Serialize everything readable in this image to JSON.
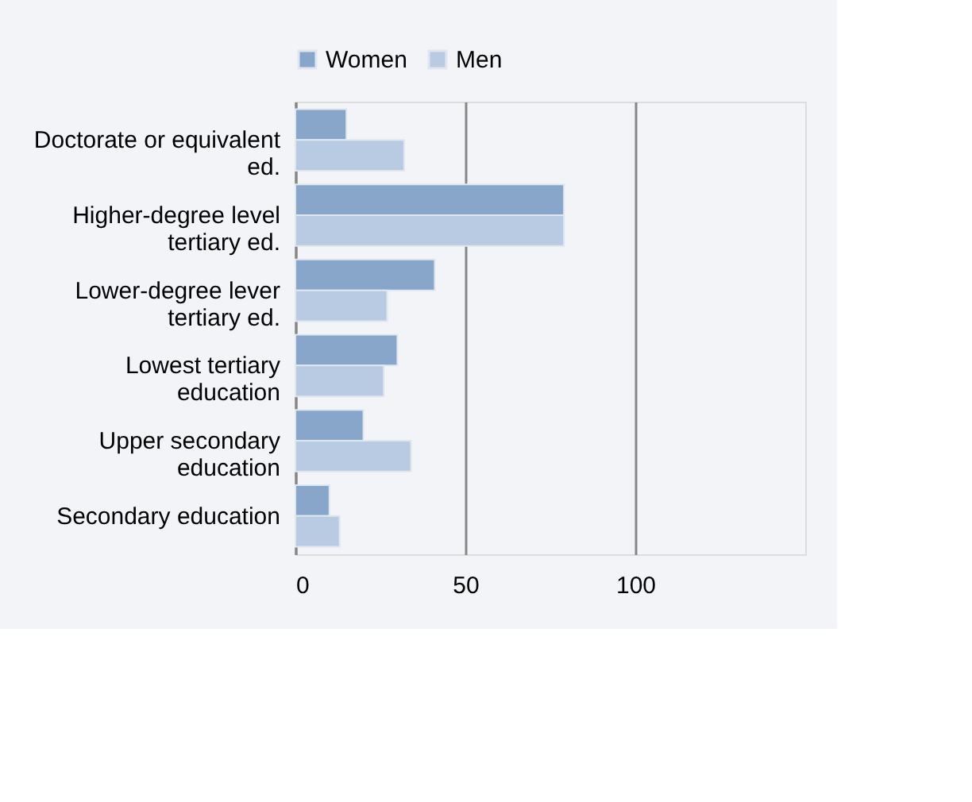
{
  "chart_data": {
    "type": "bar",
    "orientation": "horizontal",
    "categories": [
      "Doctorate or equivalent ed.",
      "Higher-degree level tertiary ed.",
      "Lower-degree lever tertiary ed.",
      "Lowest tertiary education",
      "Upper secondary education",
      "Secondary education"
    ],
    "series": [
      {
        "name": "Women",
        "color": "#87a6c9",
        "values": [
          15,
          79,
          41,
          30,
          20,
          10
        ]
      },
      {
        "name": "Men",
        "color": "#b9cbe2",
        "values": [
          32,
          79,
          27,
          26,
          34,
          13
        ]
      }
    ],
    "xlim": [
      0,
      150
    ],
    "xticks": [
      0,
      50,
      100
    ],
    "grid": "x",
    "legend": "top"
  }
}
